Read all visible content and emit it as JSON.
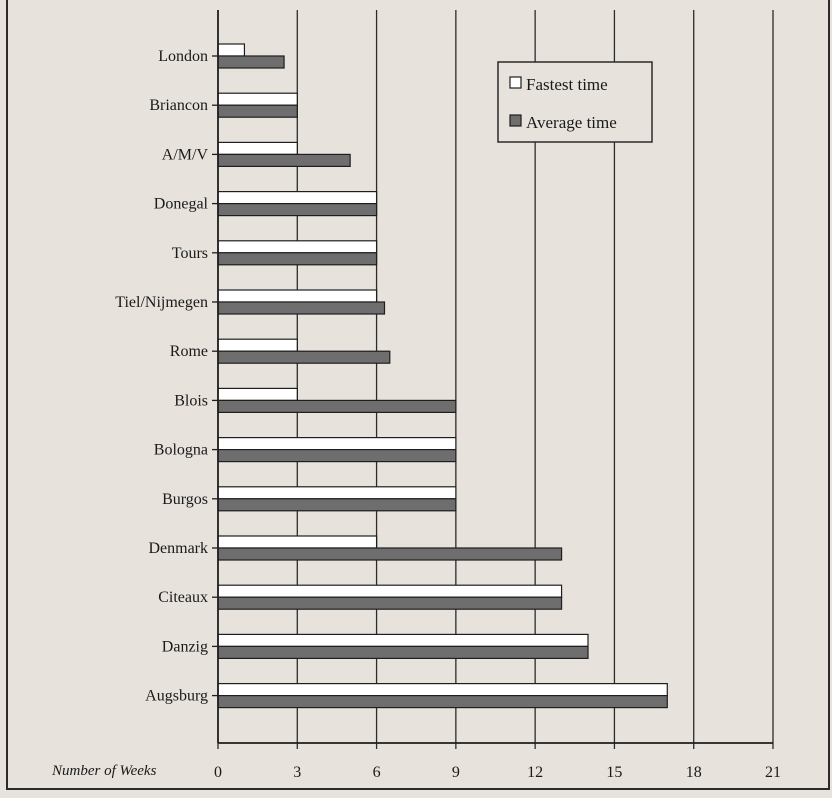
{
  "chart_data": {
    "type": "bar",
    "orientation": "horizontal",
    "categories": [
      "London",
      "Briancon",
      "A/M/V",
      "Donegal",
      "Tours",
      "Tiel/Nijmegen",
      "Rome",
      "Blois",
      "Bologna",
      "Burgos",
      "Denmark",
      "Citeaux",
      "Danzig",
      "Augsburg"
    ],
    "series": [
      {
        "name": "Fastest time",
        "values": [
          1,
          3,
          3,
          6,
          6,
          6,
          3,
          3,
          9,
          9,
          6,
          13,
          14,
          17
        ],
        "color": "#ffffff"
      },
      {
        "name": "Average time",
        "values": [
          2.5,
          3,
          5,
          6,
          6,
          6.3,
          6.5,
          9,
          9,
          9,
          13,
          13,
          14,
          17
        ],
        "color": "#6e6e6e"
      }
    ],
    "xlabel": "Number of Weeks",
    "ylabel": "",
    "xlim": [
      0,
      21
    ],
    "xticks": [
      "0",
      "3",
      "6",
      "9",
      "12",
      "15",
      "18",
      "21"
    ],
    "grid": "vertical",
    "legend": "top-right"
  }
}
